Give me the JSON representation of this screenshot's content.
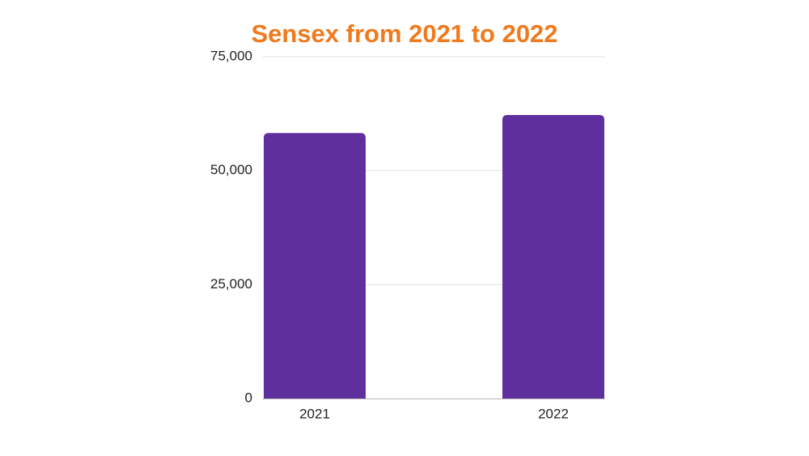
{
  "colors": {
    "title": "#f07a1d",
    "bar": "#5f2f9e",
    "grid": "#e2e2e2",
    "axis": "#b5b5b5",
    "text": "#222222"
  },
  "chart_data": {
    "type": "bar",
    "title": "Sensex from 2021 to 2022",
    "xlabel": "",
    "ylabel": "",
    "categories": [
      "2021",
      "2022"
    ],
    "values": [
      58250,
      62200
    ],
    "ylim": [
      0,
      75000
    ],
    "yticks": [
      0,
      25000,
      50000,
      75000
    ],
    "ytick_labels": [
      "0",
      "25,000",
      "50,000",
      "75,000"
    ],
    "grid": true,
    "legend": "none"
  }
}
